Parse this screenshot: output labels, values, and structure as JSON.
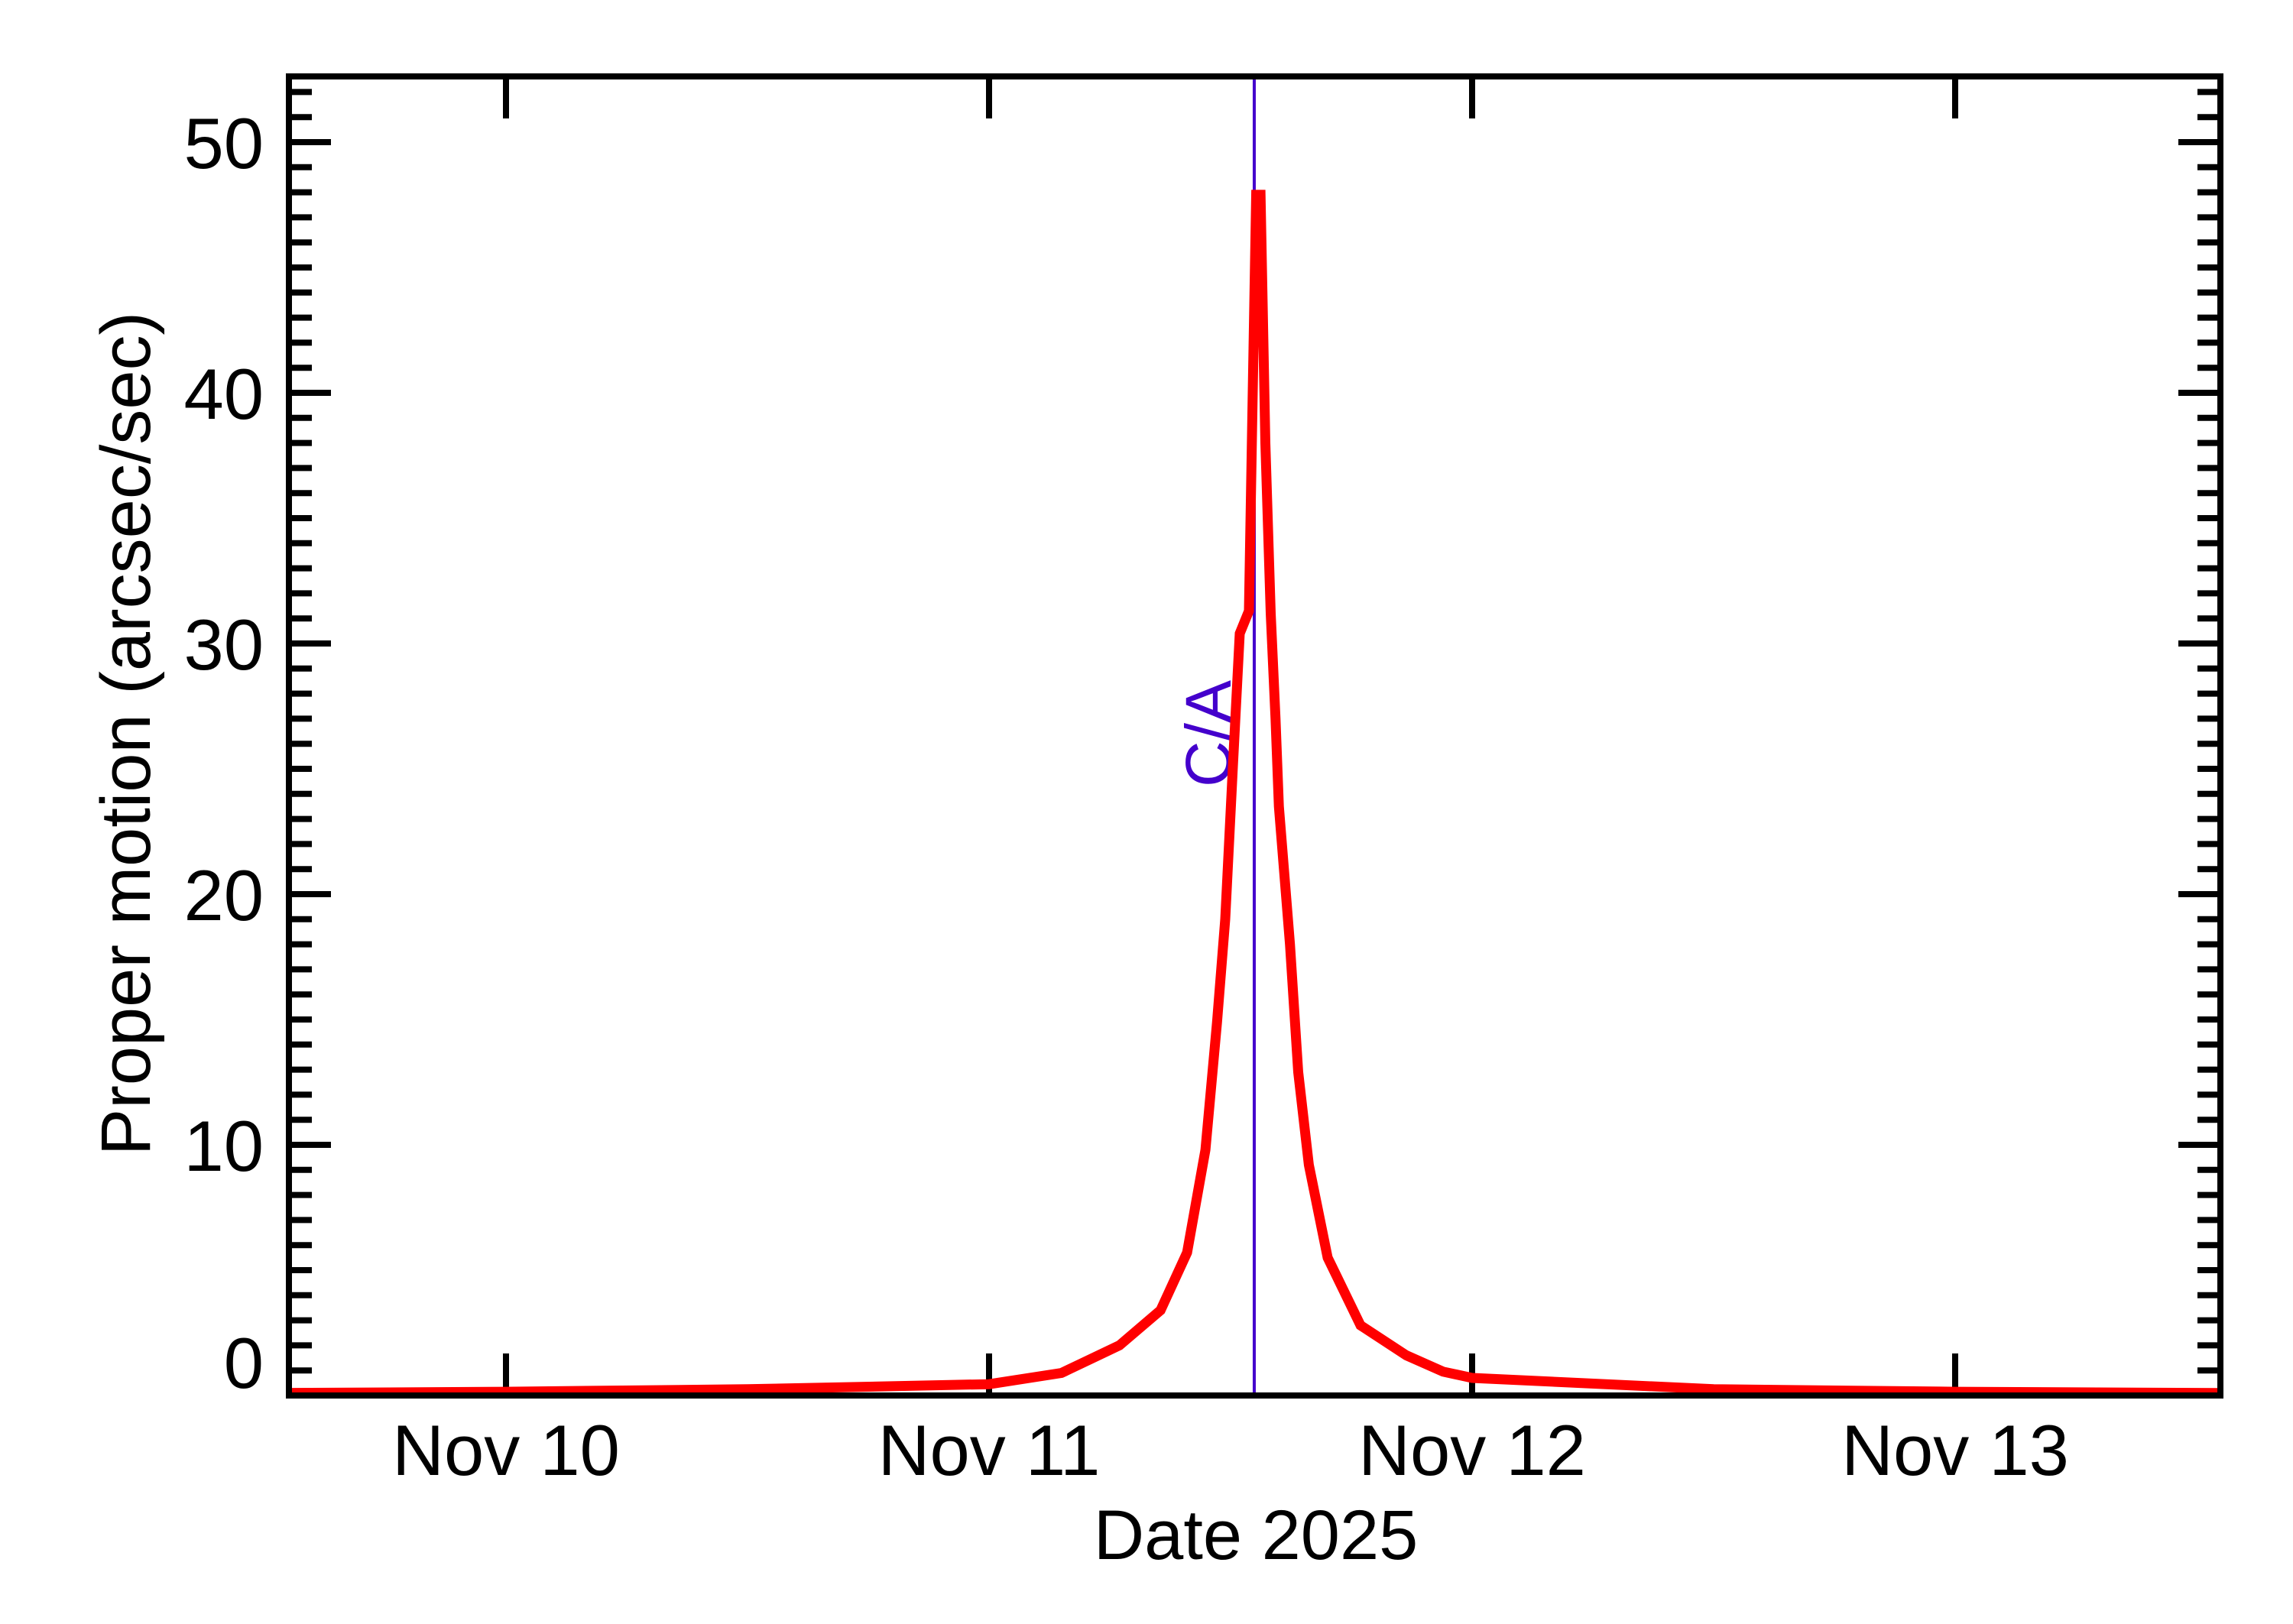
{
  "chart_data": {
    "type": "line",
    "title": "",
    "xlabel": "Date 2025",
    "ylabel": "Proper motion (arcsec/sec)",
    "x_unit": "days since Nov 10 2025 00:00 UT",
    "xlim": [
      -0.449,
      3.549
    ],
    "ylim": [
      0,
      52.7
    ],
    "grid": false,
    "legend": null,
    "x_ticks": [
      {
        "day": 0,
        "label": "Nov 10"
      },
      {
        "day": 1,
        "label": "Nov 11"
      },
      {
        "day": 2,
        "label": "Nov 12"
      },
      {
        "day": 3,
        "label": "Nov 13"
      }
    ],
    "y_ticks": [
      {
        "value": 0,
        "label": "0"
      },
      {
        "value": 10,
        "label": "10"
      },
      {
        "value": 20,
        "label": "20"
      },
      {
        "value": 30,
        "label": "30"
      },
      {
        "value": 40,
        "label": "40"
      },
      {
        "value": 50,
        "label": "50"
      }
    ],
    "y_minor_step": 1,
    "series": [
      {
        "name": "Proper motion",
        "color": "#ff0000",
        "x": [
          -0.449,
          0.0,
          0.5,
          1.0,
          1.15,
          1.27,
          1.355,
          1.41,
          1.448,
          1.472,
          1.489,
          1.505,
          1.519,
          1.538,
          1.553,
          1.562,
          1.572,
          1.583,
          1.593,
          1.6,
          1.623,
          1.64,
          1.662,
          1.701,
          1.769,
          1.864,
          1.94,
          2.0,
          2.5,
          3.0,
          3.549
        ],
        "values": [
          0.1,
          0.15,
          0.25,
          0.45,
          0.9,
          2.0,
          3.4,
          5.7,
          9.8,
          14.9,
          19.0,
          25.2,
          30.4,
          31.3,
          47.9,
          47.9,
          38.0,
          31.2,
          27.0,
          23.5,
          18.0,
          12.9,
          9.2,
          5.5,
          2.8,
          1.6,
          0.95,
          0.7,
          0.25,
          0.15,
          0.1
        ]
      }
    ],
    "annotations": [
      {
        "type": "vline",
        "day": 1.549,
        "label": "C/A",
        "color": "#4400cc",
        "description": "Close approach ~Nov 11 13:10"
      }
    ]
  },
  "colors": {
    "curve": "#ff0000",
    "ca_line": "#4400cc",
    "axes": "#000000",
    "background": "#ffffff"
  }
}
